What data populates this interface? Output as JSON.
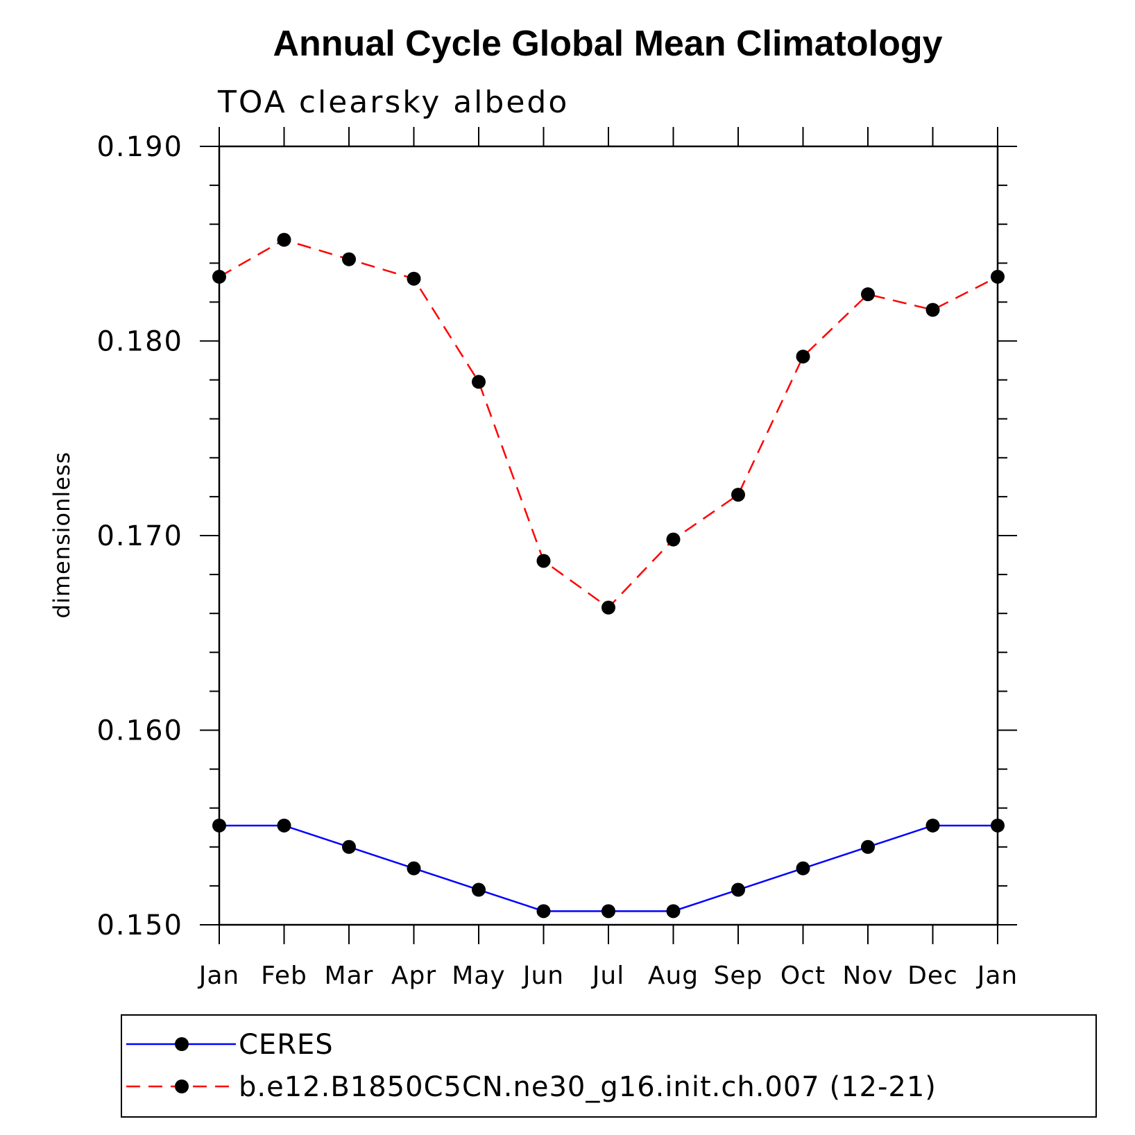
{
  "chart_data": {
    "type": "line",
    "title": "Annual Cycle Global Mean Climatology",
    "subtitle": "TOA clearsky albedo",
    "xlabel": "",
    "ylabel": "dimensionless",
    "categories": [
      "Jan",
      "Feb",
      "Mar",
      "Apr",
      "May",
      "Jun",
      "Jul",
      "Aug",
      "Sep",
      "Oct",
      "Nov",
      "Dec",
      "Jan"
    ],
    "ylim": [
      0.15,
      0.19
    ],
    "yticks": [
      "0.150",
      "0.160",
      "0.170",
      "0.180",
      "0.190"
    ],
    "ytick_values": [
      0.15,
      0.16,
      0.17,
      0.18,
      0.19
    ],
    "yminor_step": 0.002,
    "grid": false,
    "legend_position": "bottom",
    "series": [
      {
        "name": "CERES",
        "color": "#0000ff",
        "line_style": "solid",
        "marker": "filled-circle",
        "values": [
          0.1551,
          0.1551,
          0.154,
          0.1529,
          0.1518,
          0.1507,
          0.1507,
          0.1507,
          0.1518,
          0.1529,
          0.154,
          0.1551,
          0.1551
        ]
      },
      {
        "name": "b.e12.B1850C5CN.ne30_g16.init.ch.007 (12-21)",
        "color": "#ff0000",
        "line_style": "dashed",
        "marker": "filled-circle",
        "values": [
          0.1833,
          0.1852,
          0.1842,
          0.1832,
          0.1779,
          0.1687,
          0.1663,
          0.1698,
          0.1721,
          0.1792,
          0.1824,
          0.1816,
          0.1833
        ]
      }
    ]
  }
}
